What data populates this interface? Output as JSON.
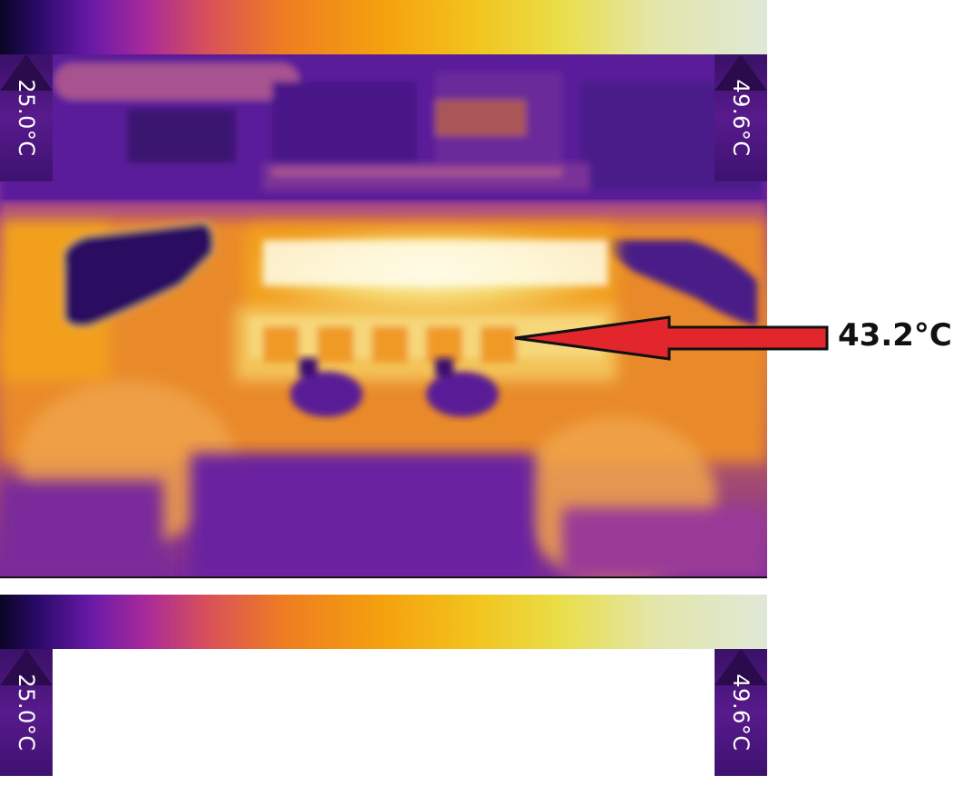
{
  "scale": {
    "top": {
      "min_label": "25.0°C",
      "max_label": "49.6°C"
    },
    "bottom": {
      "min_label": "25.0°C",
      "max_label": "49.6°C"
    },
    "palette": [
      "#0b0524",
      "#2a0a6a",
      "#6a1aa8",
      "#a82a9a",
      "#d8505a",
      "#ee7d22",
      "#f4a10e",
      "#f2c41d",
      "#e9de48",
      "#e3e6a8",
      "#dfe8d8"
    ]
  },
  "annotation": {
    "reading": "43.2°C",
    "arrow_color": "#e3262b",
    "arrow_outline": "#111111"
  }
}
